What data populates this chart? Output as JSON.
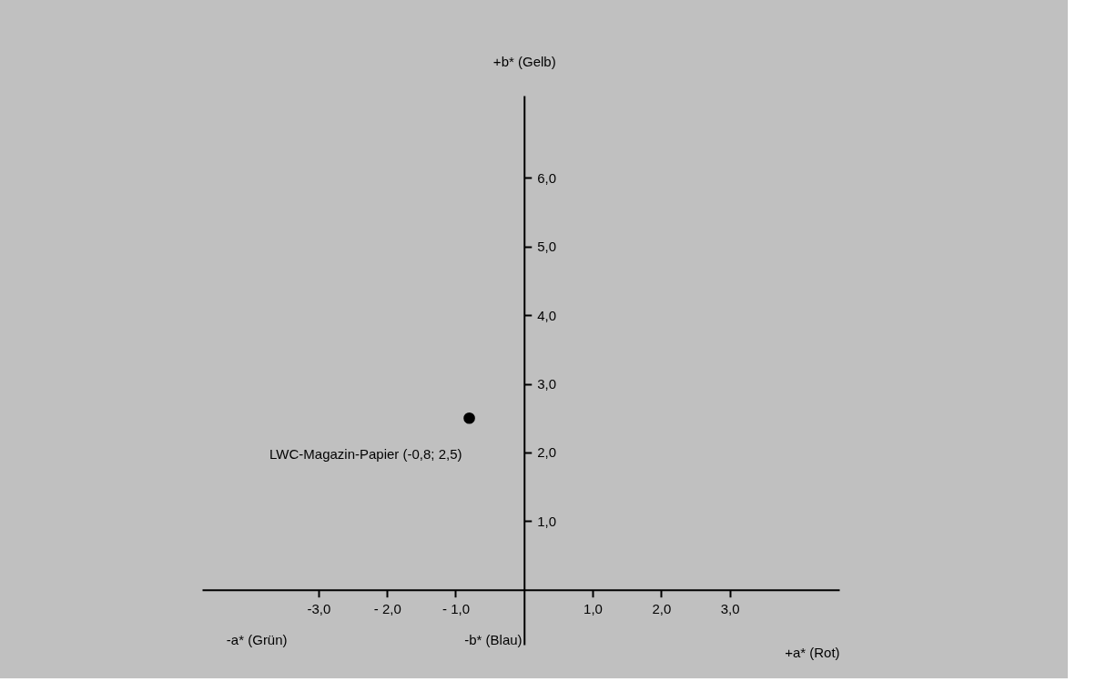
{
  "chart_data": {
    "type": "scatter",
    "xlabel": "+a* (Rot)",
    "ylabel": "+b* (Gelb)",
    "x": [
      -0.8
    ],
    "values": [
      2.5
    ],
    "color": "#000000",
    "marker": "circle",
    "xlim": [
      -4.7,
      4.6
    ],
    "ylim": [
      -0.8,
      7.2
    ],
    "xticks": [
      {
        "value": -3,
        "label": "-3,0"
      },
      {
        "value": -2,
        "label": "- 2,0"
      },
      {
        "value": -1,
        "label": "- 1,0"
      },
      {
        "value": 1,
        "label": "1,0"
      },
      {
        "value": 2,
        "label": "2,0"
      },
      {
        "value": 3,
        "label": "3,0"
      }
    ],
    "yticks": [
      {
        "value": 1,
        "label": "1,0"
      },
      {
        "value": 2,
        "label": "2,0"
      },
      {
        "value": 3,
        "label": "3,0"
      },
      {
        "value": 4,
        "label": "4,0"
      },
      {
        "value": 5,
        "label": "5,0"
      },
      {
        "value": 6,
        "label": "6,0"
      }
    ],
    "annotations": [
      {
        "text": "LWC-Magazin-Papier (-0,8; 2,5)",
        "x": -0.8,
        "y": 2.5
      },
      "-a* (Grün)",
      "-b* (Blau)"
    ],
    "grid": false
  }
}
